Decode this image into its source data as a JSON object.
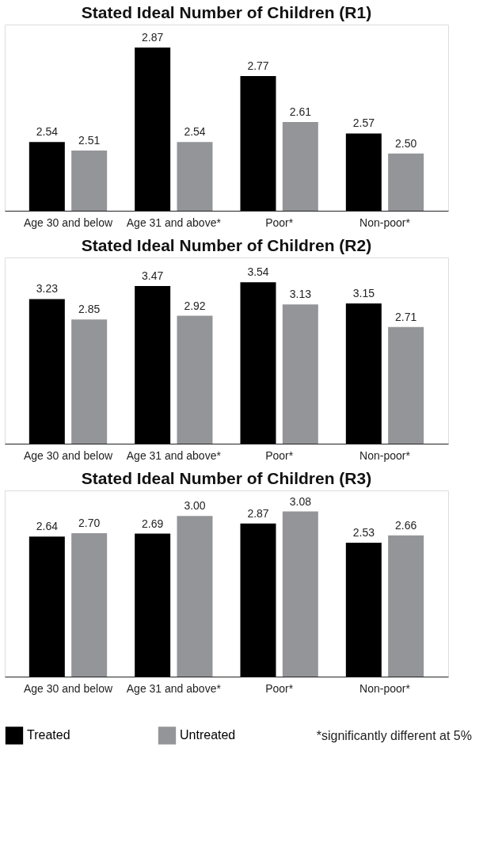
{
  "chart_data": [
    {
      "type": "bar",
      "title": "Stated Ideal Number of Children (R1)",
      "categories": [
        "Age 30 and below",
        "Age 31 and above*",
        "Poor*",
        "Non-poor*"
      ],
      "series": [
        {
          "color": "#000000",
          "values": [
            2.54,
            2.87,
            2.77,
            2.57
          ],
          "value_labels": [
            "2.54",
            "2.87",
            "2.77",
            "2.57"
          ]
        },
        {
          "color": "#939598",
          "values": [
            2.51,
            2.54,
            2.61,
            2.5
          ],
          "value_labels": [
            "2.51",
            "2.54",
            "2.61",
            "2.50"
          ]
        }
      ],
      "ylim": [
        2.3,
        2.95
      ],
      "tick_labels": "x",
      "grid": false
    },
    {
      "type": "bar",
      "title": "Stated Ideal Number of Children (R2)",
      "categories": [
        "Age 30 and below",
        "Age 31 and above*",
        "Poor*",
        "Non-poor*"
      ],
      "series": [
        {
          "color": "#000000",
          "values": [
            3.23,
            3.47,
            3.54,
            3.15
          ],
          "value_labels": [
            "3.23",
            "3.47",
            "3.54",
            "3.15"
          ]
        },
        {
          "color": "#939598",
          "values": [
            2.85,
            2.92,
            3.13,
            2.71
          ],
          "value_labels": [
            "2.85",
            "2.92",
            "3.13",
            "2.71"
          ]
        }
      ],
      "ylim": [
        0.55,
        4.0
      ],
      "tick_labels": "x",
      "grid": false
    },
    {
      "type": "bar",
      "title": "Stated Ideal Number of Children (R3)",
      "categories": [
        "Age 30 and below",
        "Age 31 and above*",
        "Poor*",
        "Non-poor*"
      ],
      "series": [
        {
          "name": "Treated",
          "color": "#000000",
          "values": [
            2.64,
            2.69,
            2.87,
            2.53
          ],
          "value_labels": [
            "2.64",
            "2.69",
            "2.87",
            "2.53"
          ]
        },
        {
          "name": "Untreated",
          "color": "#939598",
          "values": [
            2.7,
            3.0,
            3.08,
            2.66
          ],
          "value_labels": [
            "2.70",
            "3.00",
            "3.08",
            "2.66"
          ]
        }
      ],
      "ylim": [
        0.18,
        3.45
      ],
      "tick_labels": "x",
      "grid": false,
      "legend": "bottom",
      "annotations": [
        "*significantly different at 5%"
      ]
    }
  ]
}
